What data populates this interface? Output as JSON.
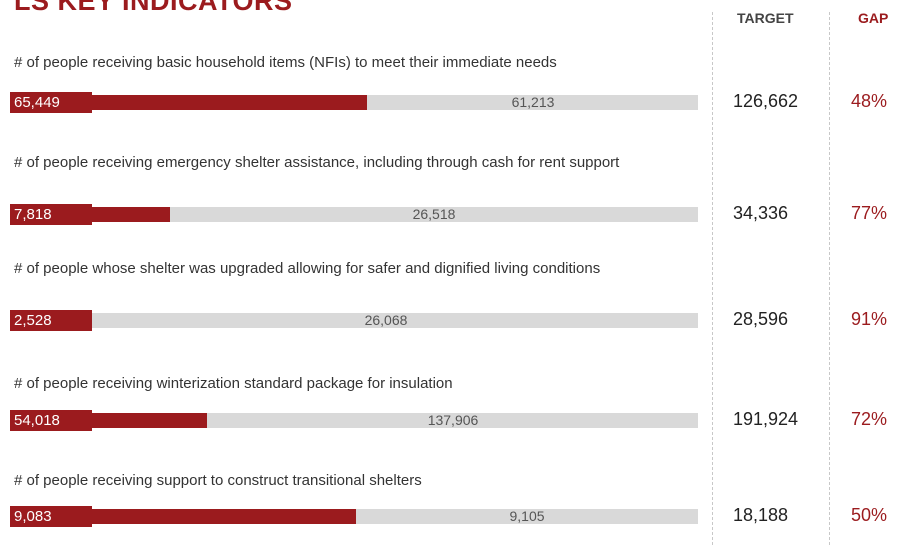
{
  "header": {
    "title": "LS KEY INDICATORS",
    "col_target": "TARGET",
    "col_gap": "GAP"
  },
  "colors": {
    "accent": "#9b1b1e",
    "track": "#d9d9d9"
  },
  "chart_data": {
    "type": "bar",
    "orientation": "horizontal",
    "stacked": true,
    "categories": [
      "# of people receiving basic household items (NFIs) to meet their immediate needs",
      "# of people receiving emergency shelter assistance, including through cash for rent support",
      "# of people whose shelter was upgraded allowing for safer and dignified living conditions",
      "# of people receiving winterization standard package for insulation",
      "# of people receiving support to construct transitional shelters"
    ],
    "rows": [
      {
        "label": "# of people receiving basic household items (NFIs) to meet their immediate needs",
        "reached": 65449,
        "reached_label": "65,449",
        "gap": 61213,
        "gap_label": "61,213",
        "target": 126662,
        "target_label": "126,662",
        "gap_pct": "48%"
      },
      {
        "label": "# of people receiving emergency shelter assistance, including through cash for rent support",
        "reached": 7818,
        "reached_label": "7,818",
        "gap": 26518,
        "gap_label": "26,518",
        "target": 34336,
        "target_label": "34,336",
        "gap_pct": "77%"
      },
      {
        "label": "# of people whose shelter was upgraded allowing for safer and dignified living conditions",
        "reached": 2528,
        "reached_label": "2,528",
        "gap": 26068,
        "gap_label": "26,068",
        "target": 28596,
        "target_label": "28,596",
        "gap_pct": "91%"
      },
      {
        "label": "# of people receiving winterization standard package for insulation",
        "reached": 54018,
        "reached_label": "54,018",
        "gap": 137906,
        "gap_label": "137,906",
        "target": 191924,
        "target_label": "191,924",
        "gap_pct": "72%"
      },
      {
        "label": "# of people receiving support to construct transitional shelters",
        "reached": 9083,
        "reached_label": "9,083",
        "gap": 9105,
        "gap_label": "9,105",
        "target": 18188,
        "target_label": "18,188",
        "gap_pct": "50%"
      }
    ]
  }
}
